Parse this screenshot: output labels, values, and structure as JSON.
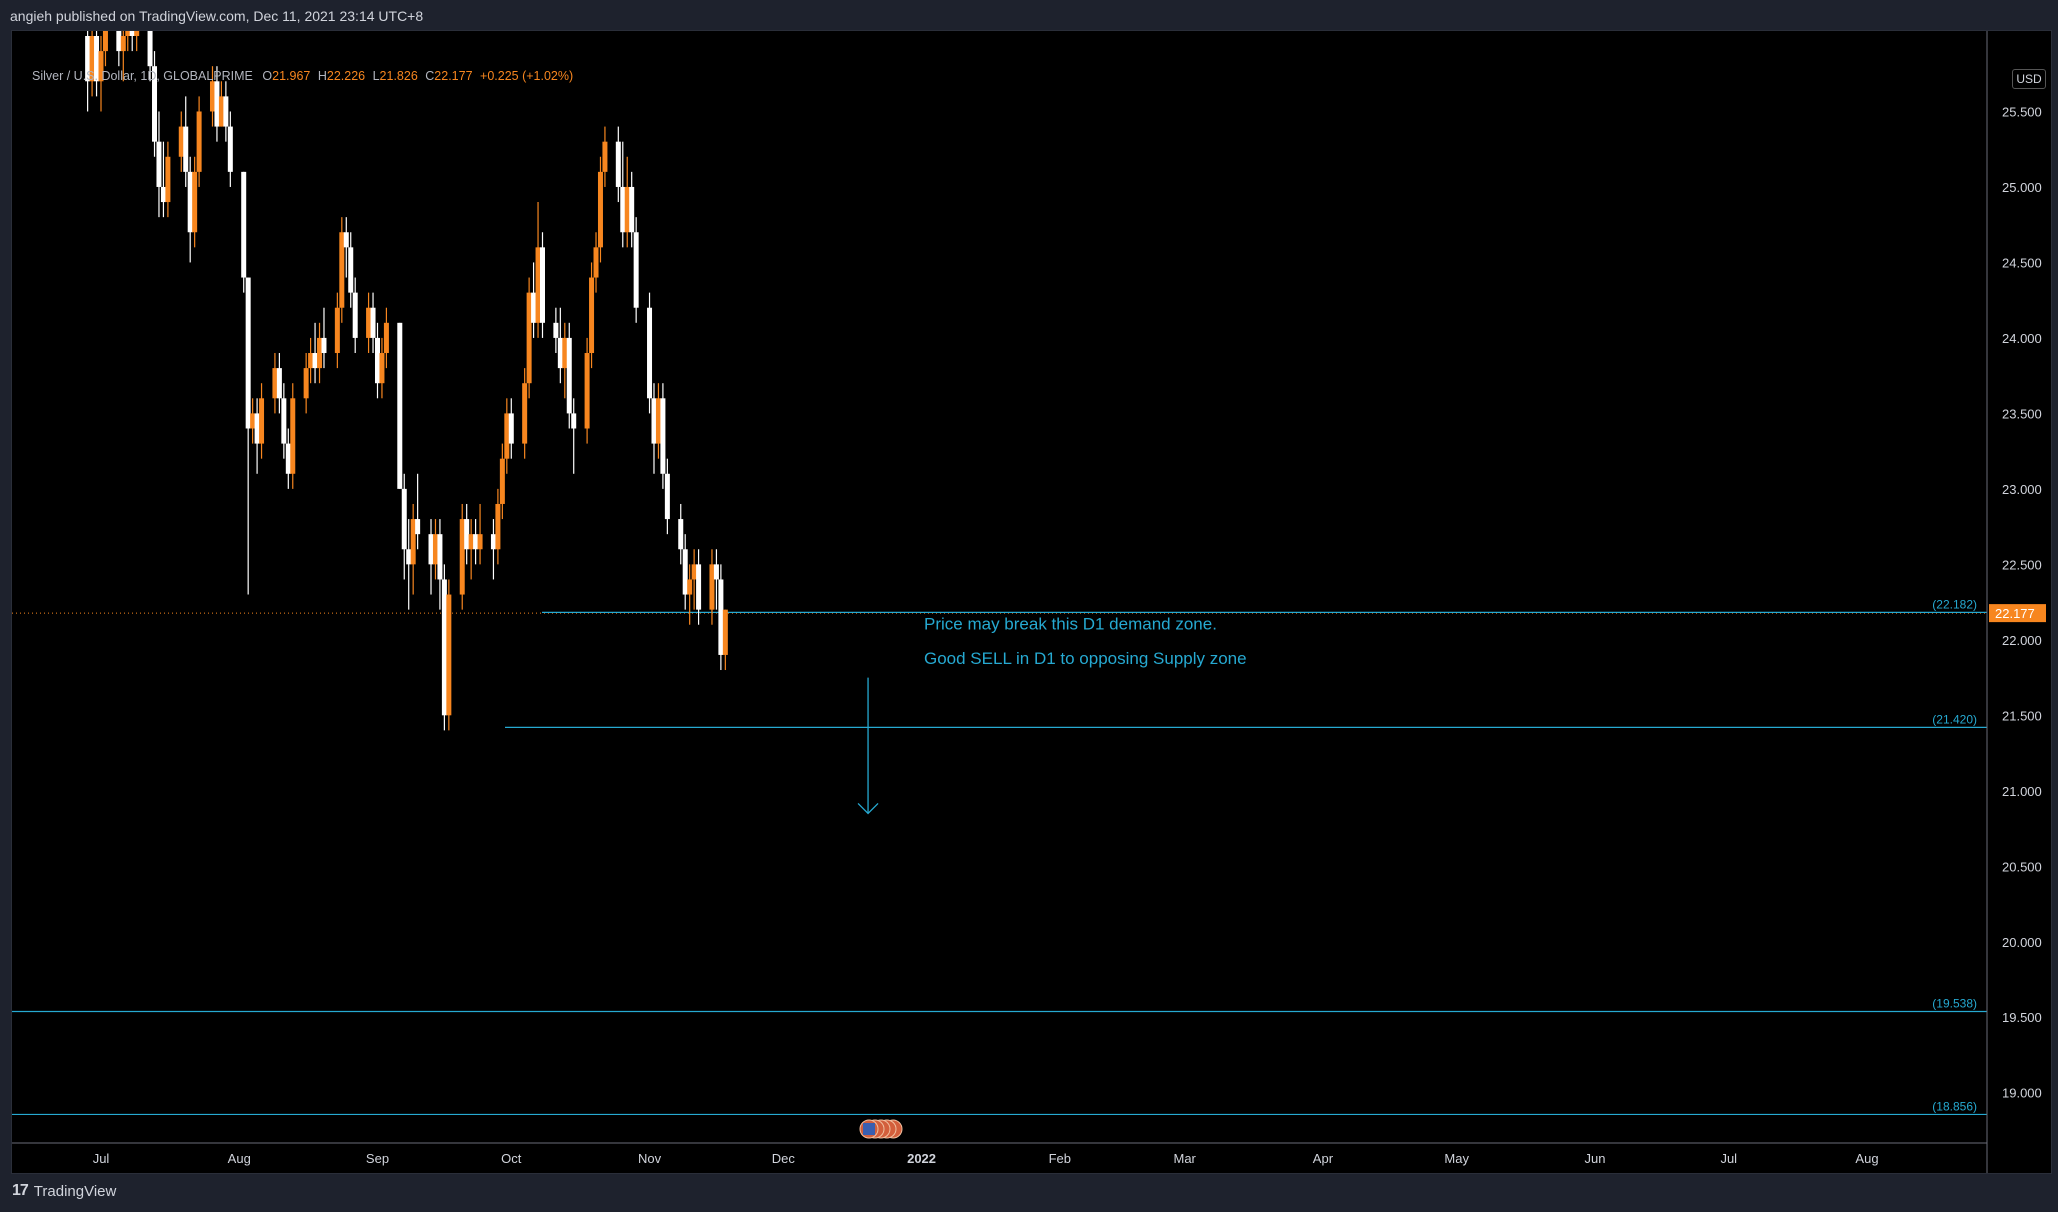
{
  "header": {
    "publisher_line": "angieh published on TradingView.com, Dec 11, 2021 23:14 UTC+8"
  },
  "legend": {
    "symbol": "Silver / U.S. Dollar, 1D, GLOBALPRIME",
    "o_label": "O",
    "o": "21.967",
    "h_label": "H",
    "h": "22.226",
    "l_label": "L",
    "l": "21.826",
    "c_label": "C",
    "c": "22.177",
    "change": "+0.225 (+1.02%)"
  },
  "currency": "USD",
  "footer": {
    "brand": "TradingView"
  },
  "colors": {
    "up": "#f7861f",
    "down": "#ffffff",
    "zone_line": "#26a9d1",
    "background": "#000000"
  },
  "chart_data": {
    "type": "candlestick",
    "ylim": [
      18.7,
      26.0
    ],
    "yticks": [
      "25.500",
      "25.000",
      "24.500",
      "24.000",
      "23.500",
      "23.000",
      "22.500",
      "22.000",
      "21.500",
      "21.000",
      "20.500",
      "20.000",
      "19.500",
      "19.000"
    ],
    "x_ticks": [
      "Jul",
      "Aug",
      "Sep",
      "Oct",
      "Nov",
      "Dec",
      "2022",
      "Feb",
      "Mar",
      "Apr",
      "May",
      "Jun",
      "Jul",
      "Aug"
    ],
    "last_price": "22.177",
    "horizontal_lines": [
      {
        "value": 22.182,
        "label": "(22.182)"
      },
      {
        "value": 21.42,
        "label": "(21.420)"
      },
      {
        "value": 19.538,
        "label": "(19.538)"
      },
      {
        "value": 18.856,
        "label": "(18.856)"
      }
    ],
    "annotations": [
      "Price may break this D1 demand zone.",
      "Good SELL in D1 to opposing Supply zone"
    ],
    "arrow": {
      "from": 21.75,
      "to": 20.85,
      "date": "2021-12-20"
    },
    "candles_start": "2021-06-28",
    "candles": [
      [
        26.0,
        26.2,
        25.5,
        25.7
      ],
      [
        25.7,
        26.1,
        25.6,
        26.0
      ],
      [
        26.0,
        26.1,
        25.6,
        25.7
      ],
      [
        25.7,
        26.0,
        25.5,
        25.9
      ],
      [
        25.9,
        26.2,
        25.8,
        26.1
      ],
      [
        26.1,
        26.2,
        25.8,
        25.9
      ],
      [
        25.9,
        26.1,
        25.7,
        26.0
      ],
      [
        26.0,
        26.2,
        25.9,
        26.1
      ],
      [
        26.1,
        26.2,
        25.9,
        26.0
      ],
      [
        26.0,
        26.2,
        25.9,
        26.1
      ],
      [
        26.1,
        26.2,
        25.7,
        25.8
      ],
      [
        25.8,
        25.9,
        25.2,
        25.3
      ],
      [
        25.3,
        25.5,
        24.8,
        25.0
      ],
      [
        25.0,
        25.3,
        24.8,
        24.9
      ],
      [
        24.9,
        25.3,
        24.8,
        25.2
      ],
      [
        25.2,
        25.5,
        25.1,
        25.4
      ],
      [
        25.4,
        25.6,
        25.0,
        25.1
      ],
      [
        25.1,
        25.2,
        24.5,
        24.7
      ],
      [
        24.7,
        25.2,
        24.6,
        25.1
      ],
      [
        25.1,
        25.6,
        25.0,
        25.5
      ],
      [
        25.5,
        25.8,
        25.4,
        25.7
      ],
      [
        25.7,
        25.8,
        25.3,
        25.4
      ],
      [
        25.4,
        25.7,
        25.4,
        25.6
      ],
      [
        25.6,
        25.7,
        25.3,
        25.4
      ],
      [
        25.4,
        25.5,
        25.0,
        25.1
      ],
      [
        25.1,
        25.1,
        24.3,
        24.4
      ],
      [
        24.4,
        24.4,
        22.3,
        23.4
      ],
      [
        23.4,
        23.6,
        23.3,
        23.5
      ],
      [
        23.5,
        23.6,
        23.1,
        23.3
      ],
      [
        23.3,
        23.7,
        23.2,
        23.6
      ],
      [
        23.6,
        23.9,
        23.5,
        23.8
      ],
      [
        23.8,
        23.9,
        23.5,
        23.6
      ],
      [
        23.6,
        23.7,
        23.2,
        23.3
      ],
      [
        23.3,
        23.4,
        23.0,
        23.1
      ],
      [
        23.1,
        23.7,
        23.0,
        23.6
      ],
      [
        23.6,
        23.9,
        23.5,
        23.8
      ],
      [
        23.8,
        24.0,
        23.7,
        23.9
      ],
      [
        23.9,
        24.1,
        23.7,
        23.8
      ],
      [
        23.8,
        24.1,
        23.7,
        24.0
      ],
      [
        24.0,
        24.2,
        23.8,
        23.9
      ],
      [
        23.9,
        24.3,
        23.8,
        24.2
      ],
      [
        24.2,
        24.8,
        24.1,
        24.7
      ],
      [
        24.7,
        24.8,
        24.4,
        24.6
      ],
      [
        24.6,
        24.7,
        24.2,
        24.3
      ],
      [
        24.3,
        24.4,
        23.9,
        24.0
      ],
      [
        24.0,
        24.3,
        23.9,
        24.2
      ],
      [
        24.2,
        24.3,
        23.9,
        24.0
      ],
      [
        24.0,
        24.1,
        23.6,
        23.7
      ],
      [
        23.7,
        24.0,
        23.6,
        23.9
      ],
      [
        23.9,
        24.2,
        23.8,
        24.1
      ],
      [
        24.1,
        24.1,
        23.0,
        23.0
      ],
      [
        23.0,
        23.1,
        22.4,
        22.6
      ],
      [
        22.6,
        22.8,
        22.2,
        22.5
      ],
      [
        22.5,
        22.9,
        22.3,
        22.8
      ],
      [
        22.8,
        23.1,
        22.6,
        22.7
      ],
      [
        22.7,
        22.8,
        22.3,
        22.5
      ],
      [
        22.5,
        22.8,
        22.4,
        22.7
      ],
      [
        22.7,
        22.8,
        22.2,
        22.4
      ],
      [
        22.4,
        22.5,
        21.4,
        21.5
      ],
      [
        21.5,
        22.4,
        21.4,
        22.3
      ],
      [
        22.3,
        22.9,
        22.2,
        22.8
      ],
      [
        22.8,
        22.9,
        22.5,
        22.6
      ],
      [
        22.6,
        22.8,
        22.4,
        22.7
      ],
      [
        22.7,
        22.8,
        22.5,
        22.6
      ],
      [
        22.6,
        22.9,
        22.5,
        22.7
      ],
      [
        22.7,
        22.8,
        22.4,
        22.6
      ],
      [
        22.6,
        23.0,
        22.5,
        22.9
      ],
      [
        22.9,
        23.3,
        22.8,
        23.2
      ],
      [
        23.2,
        23.6,
        23.1,
        23.5
      ],
      [
        23.5,
        23.6,
        23.2,
        23.3
      ],
      [
        23.3,
        23.8,
        23.2,
        23.7
      ],
      [
        23.7,
        24.4,
        23.6,
        24.3
      ],
      [
        24.3,
        24.5,
        24.0,
        24.1
      ],
      [
        24.1,
        24.9,
        24.0,
        24.6
      ],
      [
        24.6,
        24.7,
        24.0,
        24.1
      ],
      [
        24.1,
        24.2,
        23.9,
        24.0
      ],
      [
        24.0,
        24.2,
        23.7,
        23.8
      ],
      [
        23.8,
        24.1,
        23.6,
        24.0
      ],
      [
        24.0,
        24.1,
        23.4,
        23.5
      ],
      [
        23.5,
        23.6,
        23.1,
        23.4
      ],
      [
        23.4,
        24.0,
        23.3,
        23.9
      ],
      [
        23.9,
        24.5,
        23.8,
        24.4
      ],
      [
        24.4,
        24.7,
        24.3,
        24.6
      ],
      [
        24.6,
        25.2,
        24.5,
        25.1
      ],
      [
        25.1,
        25.4,
        25.0,
        25.3
      ],
      [
        25.3,
        25.4,
        24.9,
        25.0
      ],
      [
        25.0,
        25.3,
        24.6,
        24.7
      ],
      [
        24.7,
        25.2,
        24.6,
        25.0
      ],
      [
        25.0,
        25.1,
        24.6,
        24.7
      ],
      [
        24.7,
        24.8,
        24.1,
        24.2
      ],
      [
        24.2,
        24.3,
        23.5,
        23.6
      ],
      [
        23.6,
        23.7,
        23.1,
        23.3
      ],
      [
        23.3,
        23.7,
        23.2,
        23.6
      ],
      [
        23.6,
        23.7,
        23.0,
        23.1
      ],
      [
        23.1,
        23.2,
        22.7,
        22.8
      ],
      [
        22.8,
        22.9,
        22.5,
        22.6
      ],
      [
        22.6,
        22.7,
        22.2,
        22.3
      ],
      [
        22.3,
        22.5,
        22.1,
        22.4
      ],
      [
        22.4,
        22.6,
        22.2,
        22.5
      ],
      [
        22.5,
        22.6,
        22.1,
        22.2
      ],
      [
        22.2,
        22.6,
        22.1,
        22.5
      ],
      [
        22.5,
        22.6,
        22.2,
        22.4
      ],
      [
        22.4,
        22.5,
        21.8,
        21.9
      ],
      [
        21.9,
        22.2,
        21.8,
        22.2
      ]
    ]
  }
}
